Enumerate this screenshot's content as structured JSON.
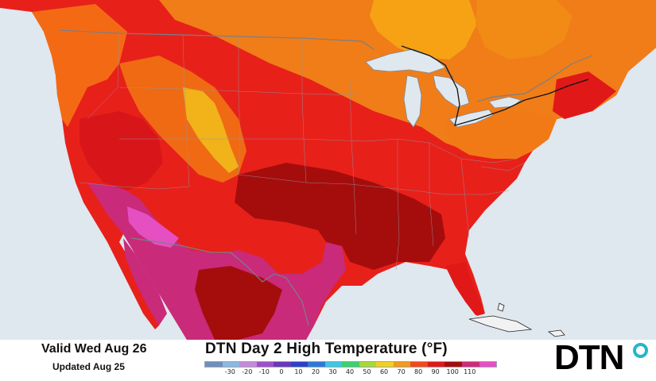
{
  "footer": {
    "valid_label": "Valid Wed Aug 26",
    "updated_label": "Updated Aug 25",
    "title": "DTN Day 2 High Temperature (°F)"
  },
  "legend": {
    "labels": [
      "-30",
      "-20",
      "-10",
      "0",
      "10",
      "20",
      "30",
      "40",
      "50",
      "60",
      "70",
      "80",
      "90",
      "100",
      "110"
    ],
    "colors": [
      "#6f8fb8",
      "#8fb8e0",
      "#c48ad8",
      "#a04fc8",
      "#6a38b8",
      "#2c40c8",
      "#2f78d8",
      "#3cc8e0",
      "#3cd070",
      "#a8d838",
      "#f0d020",
      "#f29a1a",
      "#f24a1a",
      "#e01818",
      "#a50d0d",
      "#cf2b7a",
      "#e84ec4"
    ]
  },
  "logo": {
    "text": "DTN",
    "ring_color": "#25b6c9"
  },
  "map": {
    "ocean_color": "#dfe7ef",
    "land_color_outside": "#d6d9dc"
  }
}
